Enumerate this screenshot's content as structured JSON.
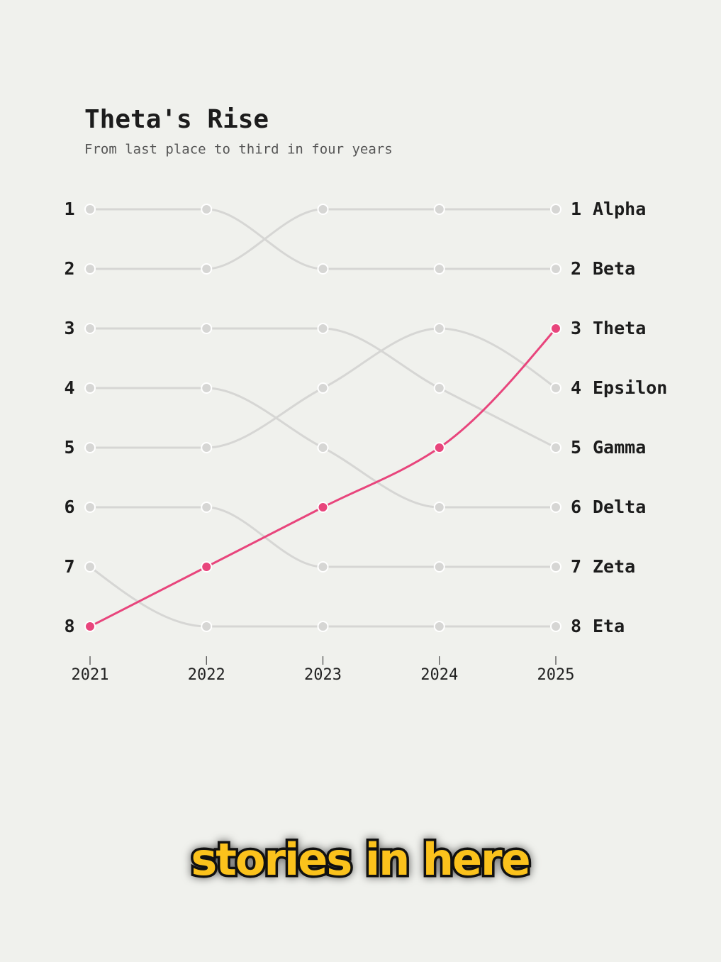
{
  "chart_data": {
    "type": "bump",
    "title": "Theta's Rise",
    "subtitle": "From last place to third in four years",
    "categories": [
      "2021",
      "2022",
      "2023",
      "2024",
      "2025"
    ],
    "ylim": [
      1,
      8
    ],
    "y_inverted": true,
    "yticks": [
      1,
      2,
      3,
      4,
      5,
      6,
      7,
      8
    ],
    "series": [
      {
        "name": "Alpha",
        "color": "#d6d6d4",
        "values": [
          2,
          2,
          1,
          1,
          1
        ]
      },
      {
        "name": "Beta",
        "color": "#d6d6d4",
        "values": [
          1,
          1,
          2,
          2,
          2
        ]
      },
      {
        "name": "Epsilon",
        "color": "#d6d6d4",
        "values": [
          5,
          5,
          4,
          3,
          4
        ]
      },
      {
        "name": "Gamma",
        "color": "#d6d6d4",
        "values": [
          3,
          3,
          3,
          4,
          5
        ]
      },
      {
        "name": "Delta",
        "color": "#d6d6d4",
        "values": [
          4,
          4,
          5,
          6,
          6
        ]
      },
      {
        "name": "Zeta",
        "color": "#d6d6d4",
        "values": [
          6,
          6,
          7,
          7,
          7
        ]
      },
      {
        "name": "Eta",
        "color": "#d6d6d4",
        "values": [
          7,
          8,
          8,
          8,
          8
        ]
      },
      {
        "name": "Theta",
        "color": "#e8457c",
        "values": [
          8,
          7,
          6,
          5,
          3
        ]
      }
    ]
  },
  "caption": "stories in here"
}
